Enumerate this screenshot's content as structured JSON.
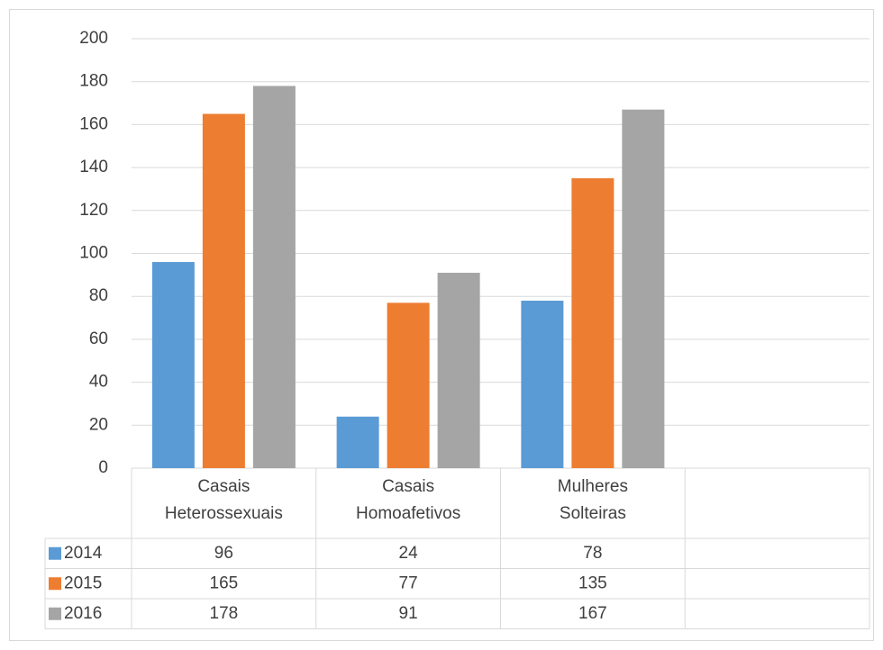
{
  "chart_data": {
    "type": "bar",
    "categories": [
      "Casais Heterossexuais",
      "Casais Homoafetivos",
      "Mulheres Solteiras",
      null
    ],
    "series": [
      {
        "name": "2014",
        "color": "#5b9bd5",
        "values": [
          96,
          24,
          78,
          null
        ]
      },
      {
        "name": "2015",
        "color": "#ed7d31",
        "values": [
          165,
          77,
          135,
          null
        ]
      },
      {
        "name": "2016",
        "color": "#a5a5a5",
        "values": [
          178,
          91,
          167,
          null
        ]
      }
    ],
    "ylim": [
      0,
      200
    ],
    "yticks": [
      0,
      20,
      40,
      60,
      80,
      100,
      120,
      140,
      160,
      180,
      200
    ],
    "grid": true,
    "data_table": true
  }
}
